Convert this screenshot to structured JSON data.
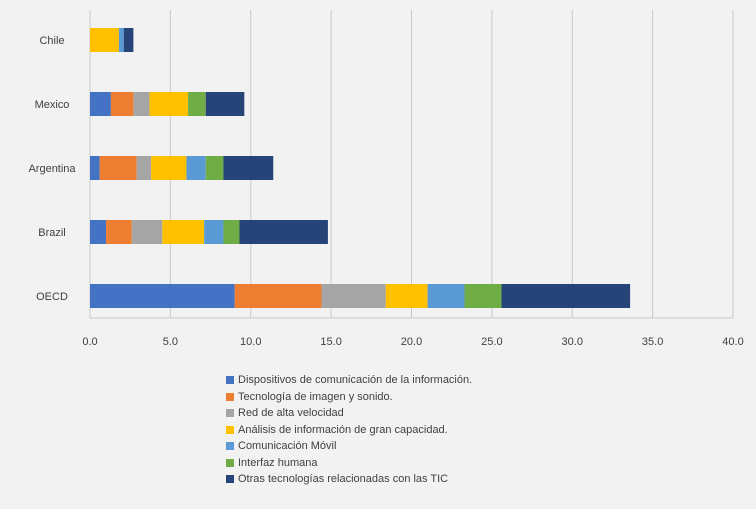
{
  "chart_data": {
    "type": "bar",
    "orientation": "horizontal",
    "stacked": true,
    "categories": [
      "Chile",
      "Mexico",
      "Argentina",
      "Brazil",
      "OECD"
    ],
    "xlim": [
      0,
      40
    ],
    "xticks": [
      "0.0",
      "5.0",
      "10.0",
      "15.0",
      "20.0",
      "25.0",
      "30.0",
      "35.0",
      "40.0"
    ],
    "grid": "vertical",
    "legend_position": "bottom",
    "series": [
      {
        "name": "Dispositivos de comunicación de la información.",
        "color": "#4472c4",
        "values": [
          0.0,
          1.3,
          0.6,
          1.0,
          9.0
        ]
      },
      {
        "name": "Tecnología de imagen y sonido.",
        "color": "#ed7d31",
        "values": [
          0.0,
          1.4,
          2.3,
          1.6,
          5.4
        ]
      },
      {
        "name": "Red de alta velocidad",
        "color": "#a5a5a5",
        "values": [
          0.0,
          1.0,
          0.9,
          1.9,
          4.0
        ]
      },
      {
        "name": "Análisis de información de gran capacidad.",
        "color": "#ffc000",
        "values": [
          1.8,
          2.4,
          2.2,
          2.6,
          2.6
        ]
      },
      {
        "name": "Comunicación Móvil",
        "color": "#5b9bd5",
        "values": [
          0.3,
          0.0,
          1.2,
          1.2,
          2.3
        ]
      },
      {
        "name": "Interfaz humana",
        "color": "#70ad47",
        "values": [
          0.0,
          1.1,
          1.1,
          1.0,
          2.3
        ]
      },
      {
        "name": "Otras tecnologías relacionadas con las TIC",
        "color": "#264478",
        "values": [
          0.6,
          2.4,
          3.1,
          5.5,
          8.0
        ]
      }
    ]
  }
}
